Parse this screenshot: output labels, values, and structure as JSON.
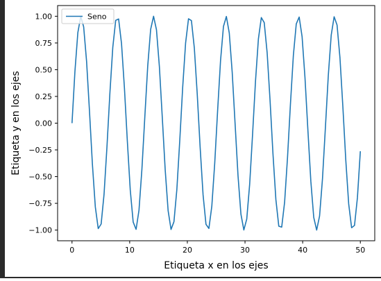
{
  "chart_data": {
    "type": "line",
    "title": "",
    "xlabel": "Etiqueta x en los ejes",
    "ylabel": "Etiqueta y en los ejes",
    "xlim": [
      -2.5,
      52.5
    ],
    "ylim": [
      -1.1,
      1.1
    ],
    "xticks": [
      0,
      10,
      20,
      30,
      40,
      50
    ],
    "xtick_labels": [
      "0",
      "10",
      "20",
      "30",
      "40",
      "50"
    ],
    "yticks": [
      -1.0,
      -0.75,
      -0.5,
      -0.25,
      0.0,
      0.25,
      0.5,
      0.75,
      1.0
    ],
    "ytick_labels": [
      "−1.00",
      "−0.75",
      "−0.50",
      "−0.25",
      "0.00",
      "0.25",
      "0.50",
      "0.75",
      "1.00"
    ],
    "grid": false,
    "legend": {
      "position": "top-left"
    },
    "series": [
      {
        "name": "Seno",
        "color": "#1f77b4",
        "function": "sin",
        "x_start": 0,
        "x_end": 50,
        "num_points": 100
      }
    ]
  }
}
